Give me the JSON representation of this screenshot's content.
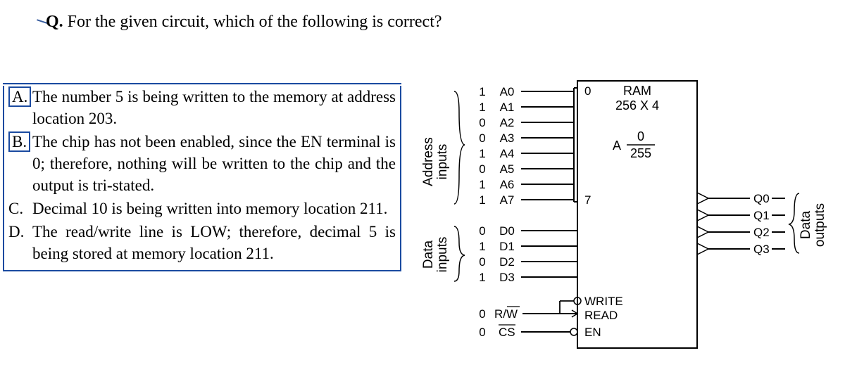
{
  "question": {
    "label": "Q.",
    "text": "For the given circuit, which of the following is correct?"
  },
  "options": {
    "A": {
      "letter": "A.",
      "text": "The number 5 is being written to the memory at address location 203."
    },
    "B": {
      "letter": "B.",
      "text": "The chip has not been enabled, since the EN terminal is 0; therefore, nothing will be written to the chip and the output is tri-stated."
    },
    "C": {
      "letter": "C.",
      "text": "Decimal 10 is being written into memory location 211."
    },
    "D": {
      "letter": "D.",
      "text": "The read/write line is LOW; therefore, decimal 5 is being stored at memory location 211."
    }
  },
  "circuit": {
    "chip_title": "RAM",
    "chip_subtitle": "256 X 4",
    "addr_range_label": "A",
    "addr_range_top": "0",
    "addr_range_bot": "255",
    "address_group_label_1": "Address",
    "address_group_label_2": "inputs",
    "data_group_label_1": "Data",
    "data_group_label_2": "inputs",
    "output_group_label_1": "Data",
    "output_group_label_2": "outputs",
    "addr_bus_top": "0",
    "addr_bus_bot": "7",
    "address_lines": [
      {
        "val": "1",
        "name": "A0"
      },
      {
        "val": "1",
        "name": "A1"
      },
      {
        "val": "0",
        "name": "A2"
      },
      {
        "val": "0",
        "name": "A3"
      },
      {
        "val": "1",
        "name": "A4"
      },
      {
        "val": "0",
        "name": "A5"
      },
      {
        "val": "1",
        "name": "A6"
      },
      {
        "val": "1",
        "name": "A7"
      }
    ],
    "data_lines": [
      {
        "val": "0",
        "name": "D0"
      },
      {
        "val": "1",
        "name": "D1"
      },
      {
        "val": "0",
        "name": "D2"
      },
      {
        "val": "1",
        "name": "D3"
      }
    ],
    "control_lines": [
      {
        "val": "0",
        "name": "R/W",
        "bar": "W",
        "chip_label": "WRITE",
        "chip_label2": "READ"
      },
      {
        "val": "0",
        "name": "CS",
        "bar": "CS",
        "chip_label": "EN"
      }
    ],
    "outputs": [
      {
        "name": "Q0"
      },
      {
        "name": "Q1"
      },
      {
        "name": "Q2"
      },
      {
        "name": "Q3"
      }
    ],
    "colors": {
      "line": "#000000",
      "border": "#1a4aa0",
      "bg": "#ffffff"
    }
  }
}
